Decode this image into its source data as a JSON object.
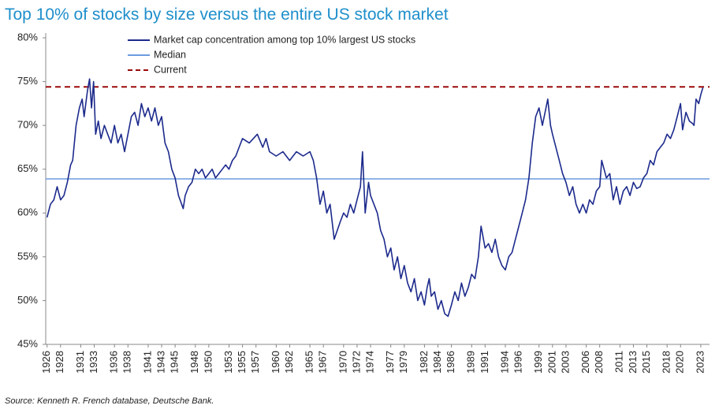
{
  "chart_data": {
    "type": "line",
    "title": "Top 10% of stocks by size versus the entire US stock market",
    "source": "Source: Kenneth R. French database, Deutsche Bank.",
    "x": [
      1926.0,
      1926.5,
      1927.0,
      1927.5,
      1928.0,
      1928.5,
      1929.0,
      1929.5,
      1929.8,
      1930.3,
      1930.8,
      1931.2,
      1931.5,
      1932.0,
      1932.3,
      1932.6,
      1932.9,
      1933.2,
      1933.6,
      1934.0,
      1934.5,
      1935.0,
      1935.5,
      1936.0,
      1936.5,
      1937.0,
      1937.5,
      1938.0,
      1938.5,
      1939.0,
      1939.5,
      1940.0,
      1940.5,
      1941.0,
      1941.5,
      1942.0,
      1942.5,
      1943.0,
      1943.5,
      1944.0,
      1944.5,
      1945.0,
      1945.5,
      1946.2,
      1946.5,
      1947.0,
      1947.5,
      1948.0,
      1948.5,
      1949.0,
      1949.5,
      1950.0,
      1950.5,
      1951.0,
      1951.5,
      1952.0,
      1952.5,
      1953.0,
      1953.5,
      1954.0,
      1954.5,
      1955.0,
      1956.0,
      1957.2,
      1958.0,
      1958.5,
      1959.0,
      1960.0,
      1961.0,
      1962.0,
      1963.0,
      1964.0,
      1965.0,
      1965.5,
      1966.0,
      1966.5,
      1967.0,
      1967.5,
      1968.0,
      1968.6,
      1969.5,
      1970.0,
      1970.5,
      1971.0,
      1971.5,
      1972.0,
      1972.5,
      1972.8,
      1973.2,
      1973.7,
      1974.0,
      1974.5,
      1975.0,
      1975.5,
      1976.0,
      1976.5,
      1977.0,
      1977.5,
      1978.0,
      1978.5,
      1979.0,
      1979.5,
      1980.0,
      1980.5,
      1981.0,
      1981.5,
      1982.0,
      1982.4,
      1982.7,
      1983.0,
      1983.5,
      1984.0,
      1984.5,
      1985.0,
      1985.5,
      1986.0,
      1986.5,
      1987.0,
      1987.5,
      1988.0,
      1988.5,
      1989.0,
      1989.5,
      1990.0,
      1990.4,
      1991.0,
      1991.5,
      1992.0,
      1992.5,
      1993.0,
      1993.5,
      1994.0,
      1994.5,
      1995.0,
      1995.5,
      1996.0,
      1996.5,
      1997.0,
      1997.5,
      1998.0,
      1998.5,
      1999.0,
      1999.5,
      2000.3,
      2000.7,
      2001.0,
      2001.5,
      2002.0,
      2002.5,
      2003.0,
      2003.5,
      2004.0,
      2004.5,
      2005.0,
      2005.5,
      2006.0,
      2006.5,
      2007.0,
      2007.5,
      2008.0,
      2008.3,
      2009.0,
      2009.5,
      2010.0,
      2010.5,
      2011.0,
      2011.5,
      2012.0,
      2012.5,
      2013.0,
      2013.5,
      2014.0,
      2014.5,
      2015.0,
      2015.5,
      2016.0,
      2016.5,
      2017.0,
      2017.5,
      2018.0,
      2018.5,
      2019.0,
      2019.5,
      2020.0,
      2020.3,
      2020.8,
      2021.3,
      2021.8,
      2022.0,
      2022.3,
      2022.7,
      2023.0,
      2023.3
    ],
    "series": [
      {
        "name": "Market cap concentration among top 10% largest US stocks",
        "color": "#1c2a8c",
        "values": [
          59.5,
          61,
          61.5,
          63,
          61.5,
          62,
          63.5,
          65.5,
          66,
          70,
          72,
          73,
          71,
          74,
          75.3,
          72,
          75,
          69,
          70.5,
          68.5,
          70,
          69,
          68,
          70,
          68,
          69,
          67,
          69,
          71,
          71.5,
          70,
          72.5,
          71,
          72,
          70.5,
          72,
          70,
          71,
          68,
          67,
          65,
          64,
          62,
          60.5,
          62,
          63,
          63.5,
          65,
          64.5,
          65,
          64,
          64.5,
          65,
          64,
          64.5,
          65,
          65.5,
          65,
          66,
          66.5,
          67.5,
          68.5,
          68,
          69,
          67.5,
          68.5,
          67,
          66.5,
          67,
          66,
          67,
          66.5,
          67,
          66,
          64,
          61,
          62.5,
          60,
          61,
          57,
          59,
          60,
          59.5,
          61,
          60,
          61.5,
          63,
          67,
          60,
          63.5,
          62,
          61,
          60,
          58,
          57,
          55,
          56,
          53.5,
          55,
          52.5,
          54,
          52,
          51,
          52.5,
          50,
          51,
          49.5,
          51.5,
          52.5,
          50.5,
          51,
          49,
          50,
          48.5,
          48.2,
          49.5,
          51,
          50,
          52,
          50.5,
          51.5,
          53,
          52.5,
          55,
          58.5,
          56,
          56.5,
          55.5,
          57,
          55,
          54,
          53.5,
          55,
          55.5,
          57,
          58.5,
          60,
          61.5,
          64,
          68,
          71,
          72,
          70,
          73,
          70,
          69,
          67.5,
          66,
          64.5,
          63.5,
          62,
          63,
          61,
          60,
          61,
          60,
          61.5,
          61,
          62.5,
          63,
          66,
          64,
          64.5,
          61.5,
          63,
          61,
          62.5,
          63,
          62,
          63.5,
          62.8,
          63,
          64,
          64.5,
          66,
          65.5,
          67,
          67.5,
          68,
          69,
          68.5,
          69.5,
          71,
          72.5,
          69.5,
          71.5,
          70.5,
          70.2,
          70,
          73,
          72.5,
          73.5,
          74.3
        ]
      }
    ],
    "reference_lines": [
      {
        "name": "Median",
        "value": 63.9,
        "color": "#6b9be0",
        "dashed": false
      },
      {
        "name": "Current",
        "value": 74.4,
        "color": "#9b0a0a",
        "dashed": true
      }
    ],
    "xlim": [
      1925.8,
      2024.3
    ],
    "xticks": [
      1926,
      1928,
      1931,
      1933,
      1936,
      1938,
      1941,
      1943,
      1945,
      1948,
      1950,
      1953,
      1955,
      1957,
      1960,
      1962,
      1965,
      1967,
      1970,
      1972,
      1974,
      1977,
      1979,
      1982,
      1984,
      1986,
      1989,
      1991,
      1994,
      1996,
      1999,
      2001,
      2003,
      2006,
      2008,
      2011,
      2013,
      2015,
      2018,
      2020,
      2023
    ],
    "ylim": [
      45,
      80
    ],
    "yticks": [
      {
        "value": 45,
        "label": "45%"
      },
      {
        "value": 50,
        "label": "50%"
      },
      {
        "value": 55,
        "label": "55%"
      },
      {
        "value": 60,
        "label": "60%"
      },
      {
        "value": 65,
        "label": "65%"
      },
      {
        "value": 70,
        "label": "70%"
      },
      {
        "value": 75,
        "label": "75%"
      },
      {
        "value": 80,
        "label": "80%"
      }
    ],
    "grid": false
  }
}
